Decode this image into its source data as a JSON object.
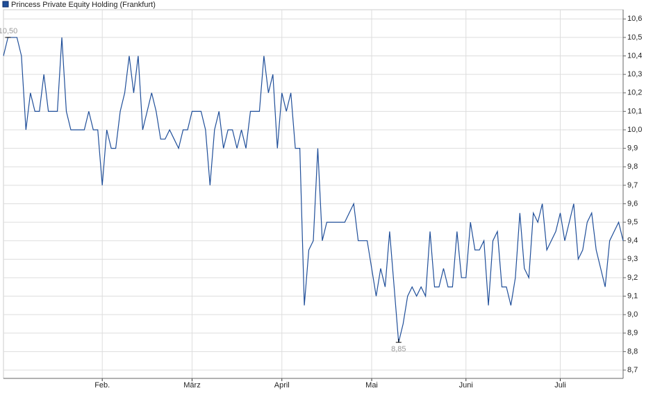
{
  "chart_data": {
    "type": "line",
    "categories": [
      null,
      null,
      null,
      null,
      null,
      null,
      null,
      null,
      null,
      null,
      null,
      null,
      null,
      null,
      null,
      null,
      null,
      null,
      null,
      null,
      null,
      null,
      "Feb.",
      null,
      null,
      null,
      null,
      null,
      null,
      null,
      null,
      null,
      null,
      null,
      null,
      null,
      null,
      null,
      null,
      null,
      null,
      null,
      "März",
      null,
      null,
      null,
      null,
      null,
      null,
      null,
      null,
      null,
      null,
      null,
      null,
      null,
      null,
      null,
      null,
      null,
      null,
      null,
      "April",
      null,
      null,
      null,
      null,
      null,
      null,
      null,
      null,
      null,
      null,
      null,
      null,
      null,
      null,
      null,
      null,
      null,
      null,
      null,
      "Mai",
      null,
      null,
      null,
      null,
      null,
      null,
      null,
      null,
      null,
      null,
      null,
      null,
      null,
      null,
      null,
      null,
      null,
      null,
      null,
      null,
      "Juni",
      null,
      null,
      null,
      null,
      null,
      null,
      null,
      null,
      null,
      null,
      null,
      null,
      null,
      null,
      null,
      null,
      null,
      null,
      null,
      null,
      "Juli",
      null,
      null,
      null,
      null,
      null,
      null,
      null,
      null,
      null,
      null,
      null,
      null,
      null,
      null
    ],
    "series": [
      {
        "name": "Princess Private Equity Holding (Frankfurt)",
        "color": "#1f4e99",
        "values": [
          10.4,
          10.5,
          10.5,
          10.5,
          10.4,
          10.0,
          10.2,
          10.1,
          10.1,
          10.3,
          10.1,
          10.1,
          10.1,
          10.5,
          10.1,
          10.0,
          10.0,
          10.0,
          10.0,
          10.1,
          10.0,
          10.0,
          9.7,
          10.0,
          9.9,
          9.9,
          10.1,
          10.2,
          10.4,
          10.2,
          10.4,
          10.0,
          10.1,
          10.2,
          10.1,
          9.95,
          9.95,
          10.0,
          9.95,
          9.9,
          10.0,
          10.0,
          10.1,
          10.1,
          10.1,
          10.0,
          9.7,
          10.0,
          10.1,
          9.9,
          10.0,
          10.0,
          9.9,
          10.0,
          9.9,
          10.1,
          10.1,
          10.1,
          10.4,
          10.2,
          10.3,
          9.9,
          10.2,
          10.1,
          10.2,
          9.9,
          9.9,
          9.05,
          9.35,
          9.4,
          9.9,
          9.4,
          9.5,
          9.5,
          9.5,
          9.5,
          9.5,
          9.55,
          9.6,
          9.4,
          9.4,
          9.4,
          9.25,
          9.1,
          9.25,
          9.15,
          9.45,
          9.15,
          8.85,
          8.95,
          9.1,
          9.15,
          9.1,
          9.15,
          9.1,
          9.45,
          9.15,
          9.15,
          9.25,
          9.15,
          9.15,
          9.45,
          9.2,
          9.2,
          9.5,
          9.35,
          9.35,
          9.4,
          9.05,
          9.4,
          9.45,
          9.15,
          9.15,
          9.05,
          9.2,
          9.55,
          9.25,
          9.2,
          9.55,
          9.5,
          9.6,
          9.35,
          9.4,
          9.45,
          9.55,
          9.4,
          9.5,
          9.6,
          9.3,
          9.35,
          9.5,
          9.55,
          9.35,
          9.25,
          9.15,
          9.4,
          9.45,
          9.5,
          9.4
        ]
      }
    ],
    "annotations": [
      {
        "value": 10.5,
        "label": "10,50"
      },
      {
        "value": 8.85,
        "label": "8,85"
      }
    ],
    "ylim": [
      8.655,
      10.65
    ],
    "yticks": [
      {
        "value": 8.7,
        "label": "8,7"
      },
      {
        "value": 8.8,
        "label": "8,8"
      },
      {
        "value": 8.9,
        "label": "8,9"
      },
      {
        "value": 9.0,
        "label": "9,0"
      },
      {
        "value": 9.1,
        "label": "9,1"
      },
      {
        "value": 9.2,
        "label": "9,2"
      },
      {
        "value": 9.3,
        "label": "9,3"
      },
      {
        "value": 9.4,
        "label": "9,4"
      },
      {
        "value": 9.5,
        "label": "9,5"
      },
      {
        "value": 9.6,
        "label": "9,6"
      },
      {
        "value": 9.7,
        "label": "9,7"
      },
      {
        "value": 9.8,
        "label": "9,8"
      },
      {
        "value": 9.9,
        "label": "9,9"
      },
      {
        "value": 10.0,
        "label": "10,0"
      },
      {
        "value": 10.1,
        "label": "10,1"
      },
      {
        "value": 10.2,
        "label": "10,2"
      },
      {
        "value": 10.3,
        "label": "10,3"
      },
      {
        "value": 10.4,
        "label": "10,4"
      },
      {
        "value": 10.5,
        "label": "10,5"
      },
      {
        "value": 10.6,
        "label": "10,6"
      }
    ],
    "grid": true
  }
}
